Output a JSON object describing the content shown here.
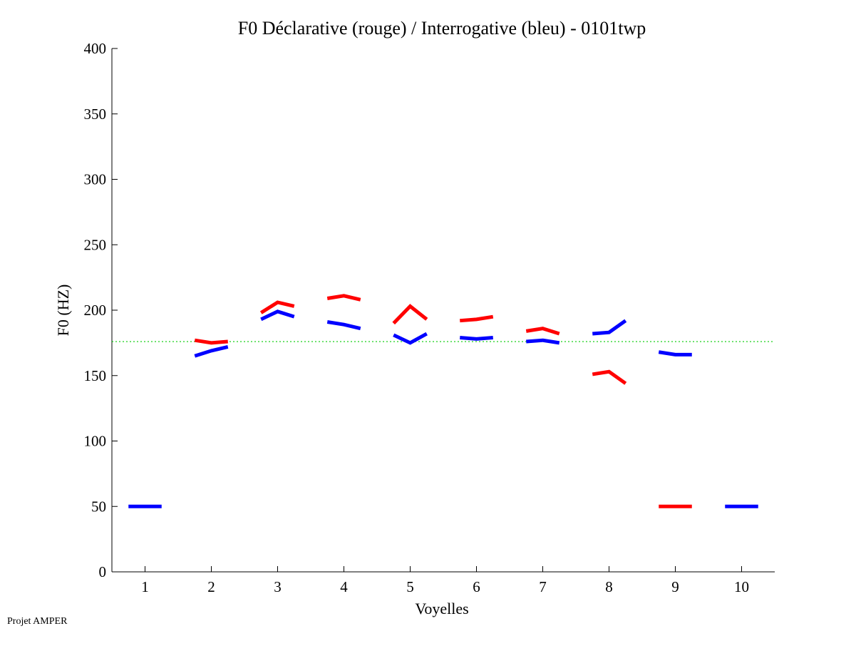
{
  "chart_data": {
    "type": "line",
    "title": "F0 Déclarative (rouge) / Interrogative (bleu) - 0101twp",
    "xlabel": "Voyelles",
    "ylabel": "F0 (HZ)",
    "xlim": [
      0.5,
      10.5
    ],
    "ylim": [
      0,
      400
    ],
    "xticks": [
      "1",
      "2",
      "3",
      "4",
      "5",
      "6",
      "7",
      "8",
      "9",
      "10"
    ],
    "yticks": [
      "0",
      "50",
      "100",
      "150",
      "200",
      "250",
      "300",
      "350",
      "400"
    ],
    "grid": false,
    "reference_line": {
      "value": 176,
      "color": "#00cc00",
      "style": "dotted"
    },
    "series": [
      {
        "name": "Déclarative",
        "color": "#ff0000",
        "segments": [
          {
            "vowel": 2,
            "values": [
              177,
              175,
              176
            ]
          },
          {
            "vowel": 3,
            "values": [
              198,
              206,
              203
            ]
          },
          {
            "vowel": 4,
            "values": [
              209,
              211,
              208
            ]
          },
          {
            "vowel": 5,
            "values": [
              190,
              203,
              193
            ]
          },
          {
            "vowel": 6,
            "values": [
              192,
              193,
              195
            ]
          },
          {
            "vowel": 7,
            "values": [
              184,
              186,
              182
            ]
          },
          {
            "vowel": 8,
            "values": [
              151,
              153,
              144
            ]
          },
          {
            "vowel": 9,
            "values": [
              50,
              50,
              50
            ]
          }
        ]
      },
      {
        "name": "Interrogative",
        "color": "#0000ff",
        "segments": [
          {
            "vowel": 1,
            "values": [
              50,
              50,
              50
            ]
          },
          {
            "vowel": 2,
            "values": [
              165,
              169,
              172
            ]
          },
          {
            "vowel": 3,
            "values": [
              193,
              199,
              195
            ]
          },
          {
            "vowel": 4,
            "values": [
              191,
              189,
              186
            ]
          },
          {
            "vowel": 5,
            "values": [
              181,
              175,
              182
            ]
          },
          {
            "vowel": 6,
            "values": [
              179,
              178,
              179
            ]
          },
          {
            "vowel": 7,
            "values": [
              176,
              177,
              175
            ]
          },
          {
            "vowel": 8,
            "values": [
              182,
              183,
              192
            ]
          },
          {
            "vowel": 9,
            "values": [
              168,
              166,
              166
            ]
          },
          {
            "vowel": 10,
            "values": [
              50,
              50,
              50
            ]
          }
        ]
      }
    ]
  },
  "footer": "Projet AMPER"
}
